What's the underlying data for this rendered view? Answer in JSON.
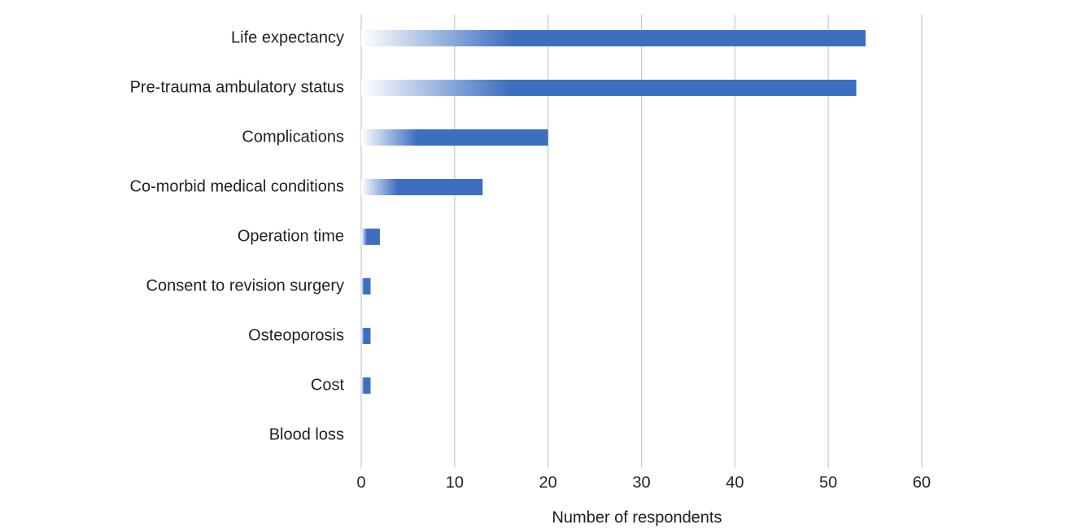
{
  "chart_data": {
    "type": "barh",
    "categories": [
      "Life expectancy",
      "Pre-trauma ambulatory status",
      "Complications",
      "Co-morbid medical conditions",
      "Operation time",
      "Consent to revision surgery",
      "Osteoporosis",
      "Cost",
      "Blood loss"
    ],
    "values": [
      54,
      53,
      20,
      13,
      2,
      1,
      1,
      1,
      0
    ],
    "color": "#3d6fc0",
    "xlabel": "Number of respondents",
    "xlim": [
      0,
      60
    ],
    "xticks": [
      0,
      10,
      20,
      30,
      40,
      50,
      60
    ],
    "grid": true
  }
}
